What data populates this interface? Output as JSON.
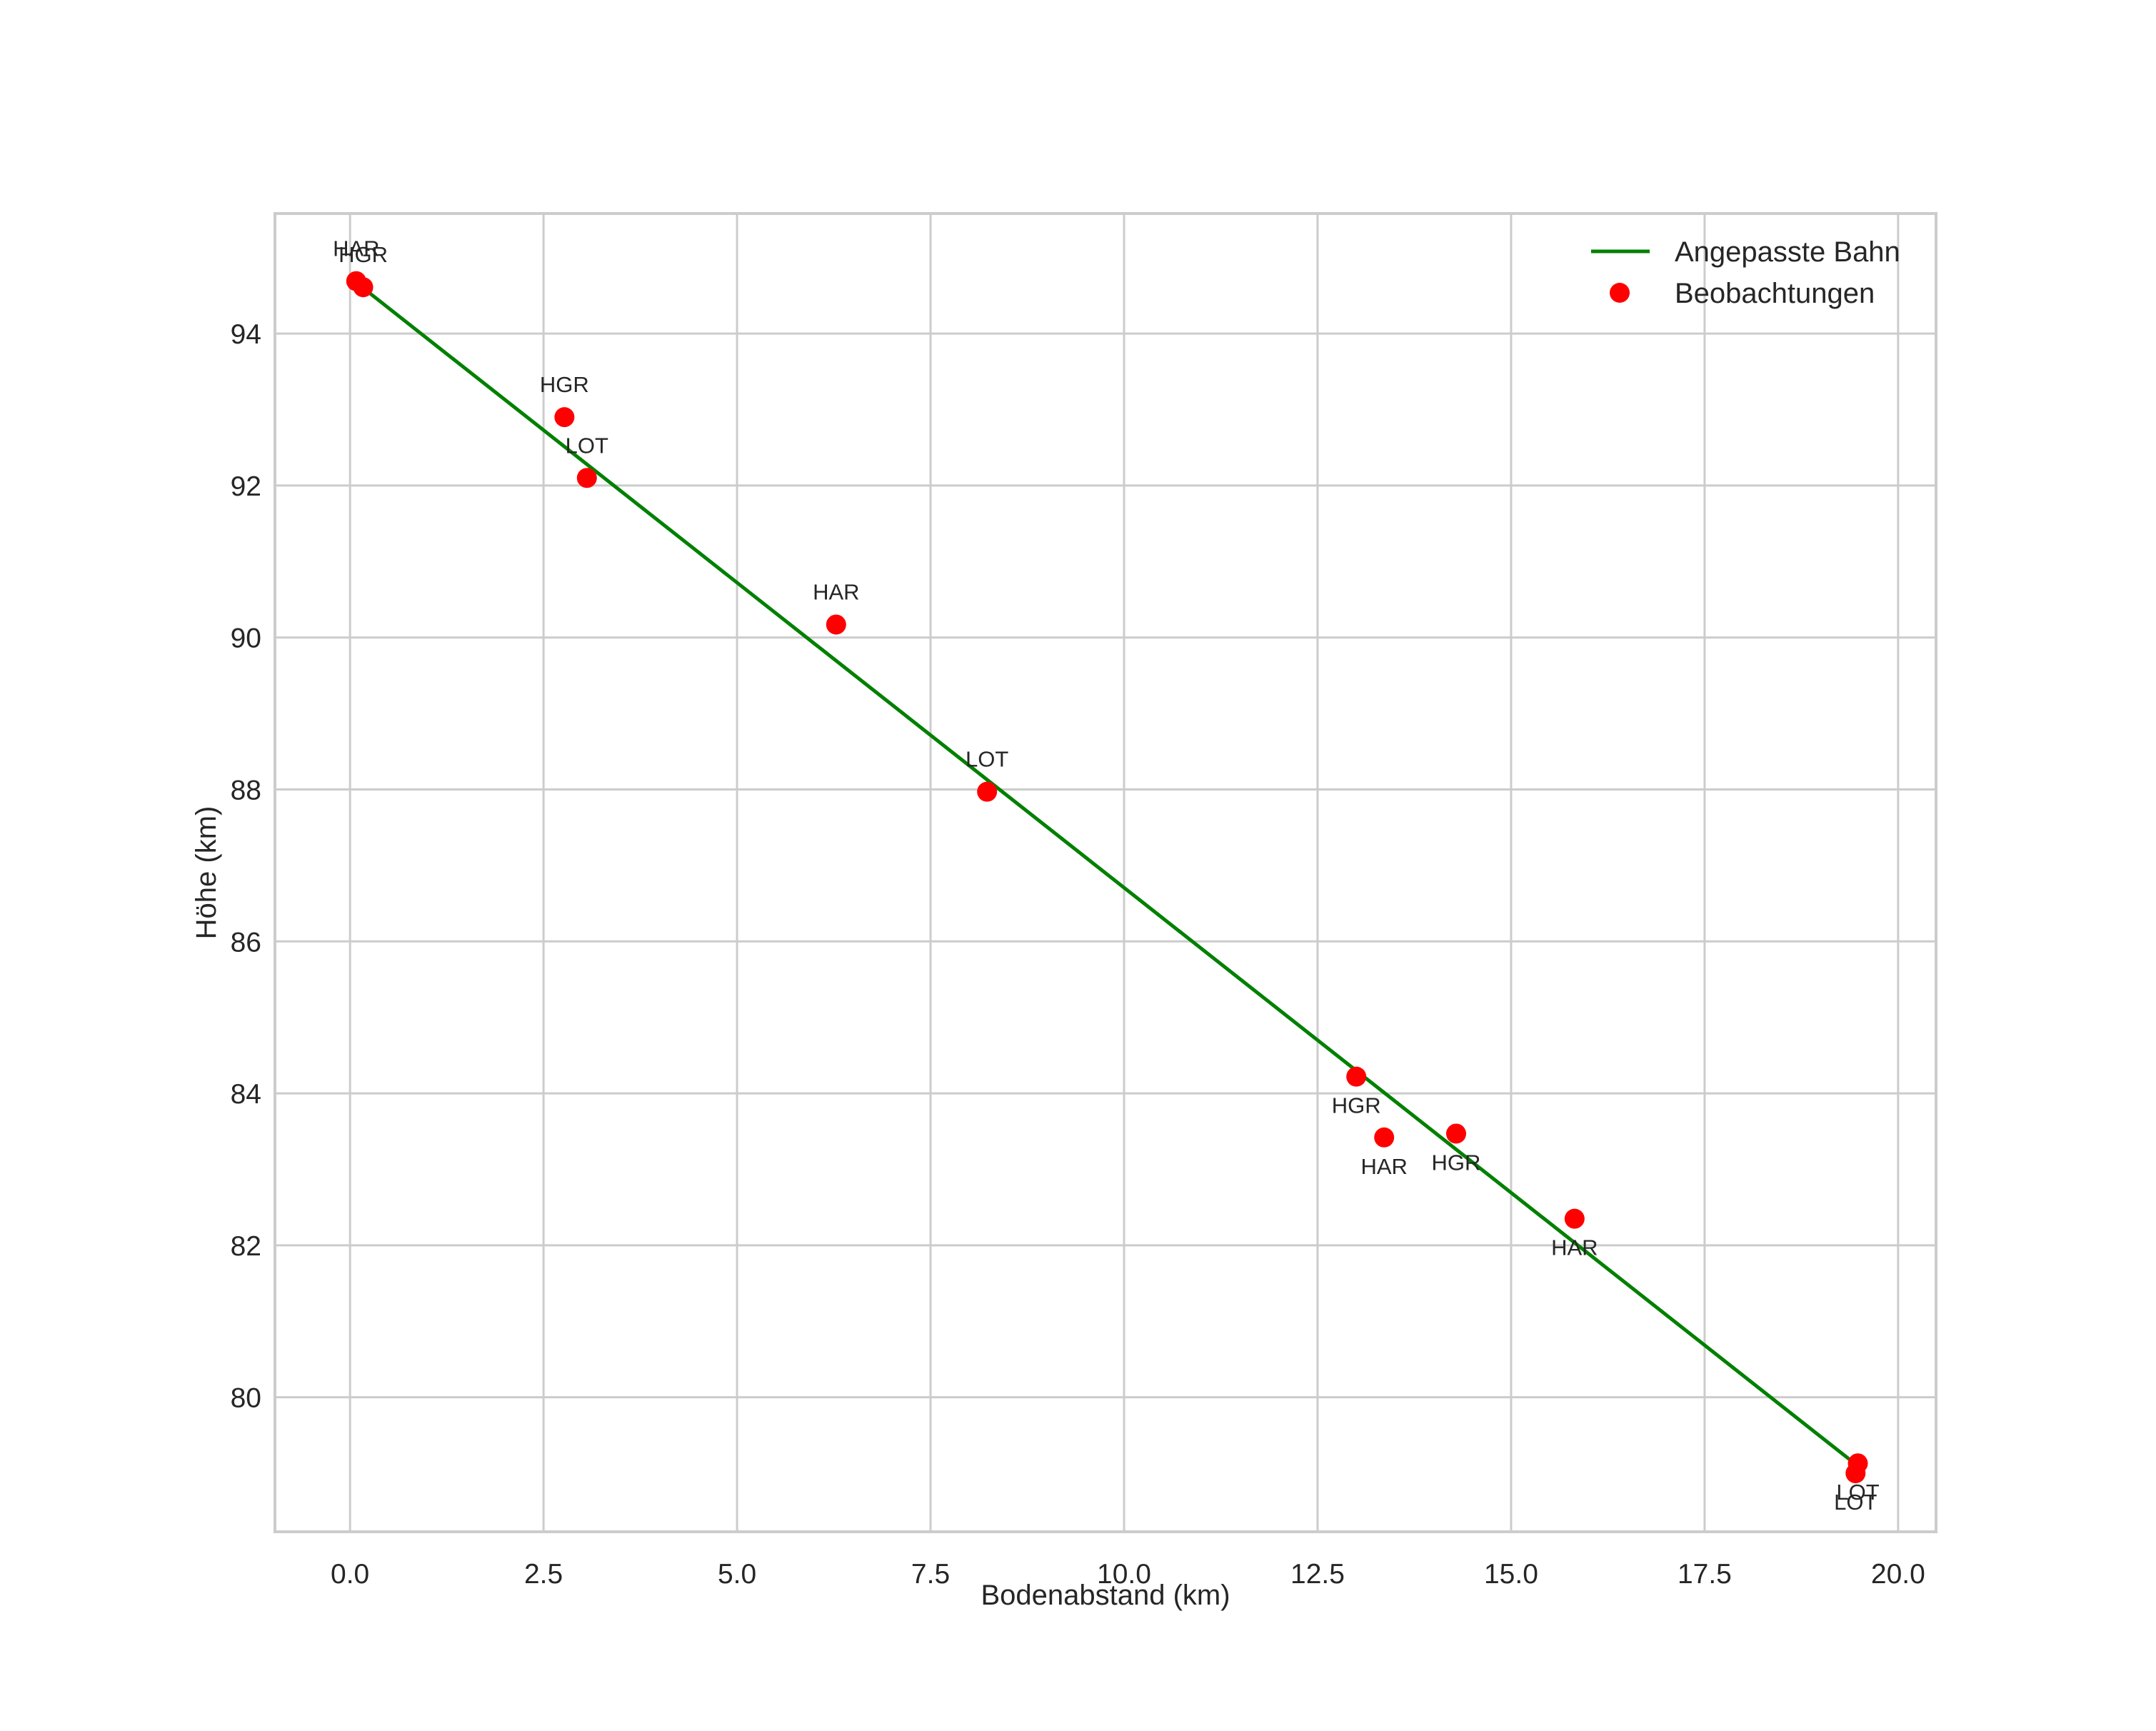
{
  "chart_data": {
    "type": "scatter",
    "title": "",
    "xlabel": "Bodenabstand (km)",
    "ylabel": "Höhe (km)",
    "xlim": [
      -0.97,
      20.49
    ],
    "ylim": [
      78.23,
      95.58
    ],
    "xticks": [
      0.0,
      2.5,
      5.0,
      7.5,
      10.0,
      12.5,
      15.0,
      17.5,
      20.0
    ],
    "xtick_labels": [
      "0.0",
      "2.5",
      "5.0",
      "7.5",
      "10.0",
      "12.5",
      "15.0",
      "17.5",
      "20.0"
    ],
    "yticks": [
      80,
      82,
      84,
      86,
      88,
      90,
      92,
      94
    ],
    "ytick_labels": [
      "80",
      "82",
      "84",
      "86",
      "88",
      "90",
      "92",
      "94"
    ],
    "grid": true,
    "legend_position": "upper right",
    "series": [
      {
        "name": "Angepasste Bahn",
        "kind": "line",
        "color": "#008000",
        "x": [
          0.02,
          19.4
        ],
        "y": [
          94.72,
          79.16
        ]
      },
      {
        "name": "Beobachtungen",
        "kind": "scatter",
        "color": "#ff0000",
        "points": [
          {
            "x": 0.08,
            "y": 94.69,
            "label": "HAR",
            "label_pos": "above"
          },
          {
            "x": 0.17,
            "y": 94.61,
            "label": "HGR",
            "label_pos": "above"
          },
          {
            "x": 2.77,
            "y": 92.9,
            "label": "HGR",
            "label_pos": "above"
          },
          {
            "x": 3.06,
            "y": 92.1,
            "label": "LOT",
            "label_pos": "above"
          },
          {
            "x": 6.28,
            "y": 90.17,
            "label": "HAR",
            "label_pos": "above"
          },
          {
            "x": 8.23,
            "y": 87.97,
            "label": "LOT",
            "label_pos": "above"
          },
          {
            "x": 13.0,
            "y": 84.22,
            "label": "HGR",
            "label_pos": "below"
          },
          {
            "x": 13.36,
            "y": 83.42,
            "label": "HAR",
            "label_pos": "below"
          },
          {
            "x": 14.29,
            "y": 83.47,
            "label": "HGR",
            "label_pos": "below"
          },
          {
            "x": 15.82,
            "y": 82.35,
            "label": "HAR",
            "label_pos": "below"
          },
          {
            "x": 19.48,
            "y": 79.13,
            "label": "LOT",
            "label_pos": "below"
          },
          {
            "x": 19.45,
            "y": 79.0,
            "label": "LOT",
            "label_pos": "below"
          }
        ]
      }
    ]
  },
  "legend": {
    "items": [
      {
        "label": "Angepasste Bahn",
        "symbol": "line",
        "color": "#008000"
      },
      {
        "label": "Beobachtungen",
        "symbol": "dot",
        "color": "#ff0000"
      }
    ]
  },
  "colors": {
    "line": "#008000",
    "points": "#ff0000",
    "grid": "#cccccc",
    "text": "#262626"
  }
}
